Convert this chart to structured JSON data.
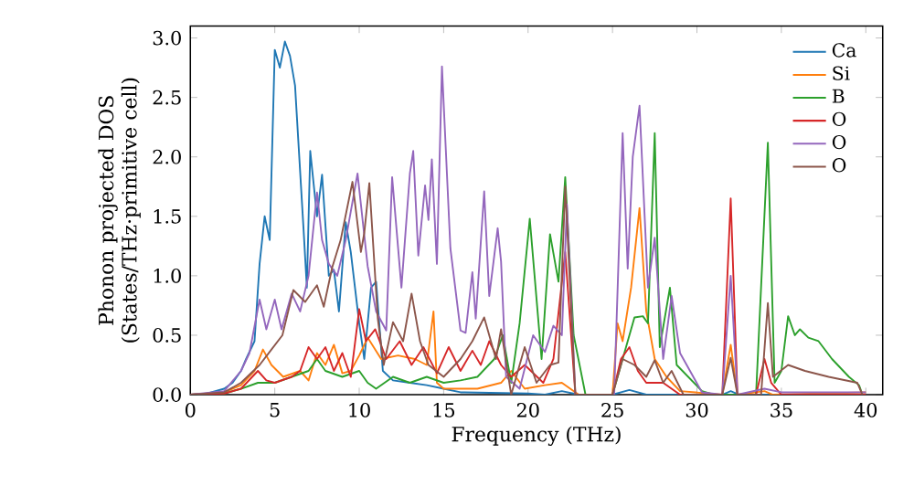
{
  "chart_data": {
    "type": "line",
    "xlabel": "Frequency (THz)",
    "ylabel": "Phonon projected DOS (States/THz·primitive cell)",
    "xlim": [
      0,
      41
    ],
    "ylim": [
      0,
      3.1
    ],
    "xticks": [
      0,
      5,
      10,
      15,
      20,
      25,
      30,
      35,
      40
    ],
    "yticks": [
      {
        "value": 0,
        "label": "0.0"
      },
      {
        "value": 0.5,
        "label": "0.5"
      },
      {
        "value": 1,
        "label": "1.0"
      },
      {
        "value": 1.5,
        "label": "1.5"
      },
      {
        "value": 2,
        "label": "2.0"
      },
      {
        "value": 2.5,
        "label": "2.5"
      },
      {
        "value": 3,
        "label": "3.0"
      }
    ],
    "legend": "top right",
    "line_style": "solid",
    "grid": false,
    "series": [
      {
        "name": "Ca",
        "color": "#1f77b4",
        "x": [
          0,
          1,
          2,
          2.5,
          3,
          3.3,
          3.8,
          4.1,
          4.4,
          4.7,
          5.0,
          5.3,
          5.6,
          5.9,
          6.2,
          6.7,
          6.9,
          7.1,
          7.5,
          7.8,
          8.2,
          8.5,
          8.8,
          9.2,
          9.5,
          10.0,
          10.3,
          10.7,
          11,
          11.4,
          12,
          13,
          14,
          15,
          16,
          20,
          21,
          22,
          23,
          25,
          26,
          27,
          31.5,
          32,
          32.5,
          40
        ],
        "values": [
          0,
          0.01,
          0.05,
          0.1,
          0.2,
          0.3,
          0.45,
          1.1,
          1.5,
          1.3,
          2.9,
          2.75,
          2.97,
          2.85,
          2.6,
          1.4,
          0.9,
          2.05,
          1.5,
          1.85,
          1.0,
          1.05,
          0.7,
          1.45,
          1.2,
          0.6,
          0.3,
          0.9,
          0.95,
          0.2,
          0.12,
          0.1,
          0.08,
          0.05,
          0.02,
          0.01,
          0,
          0.03,
          0,
          0,
          0.04,
          0,
          0,
          0.03,
          0,
          0
        ]
      },
      {
        "name": "Si",
        "color": "#ff7f0e",
        "x": [
          0,
          2,
          3,
          3.8,
          4.3,
          4.8,
          5.5,
          6.5,
          7,
          7.5,
          8,
          8.5,
          9,
          9.5,
          10,
          10.5,
          11.3,
          12.3,
          13.3,
          14,
          14.4,
          14.6,
          15,
          17,
          18.4,
          19,
          19.8,
          21,
          22,
          23,
          25,
          25.3,
          25.6,
          26.1,
          26.6,
          27,
          27.5,
          28.2,
          29,
          31.5,
          32,
          32.4,
          34,
          34.5,
          40
        ],
        "values": [
          0,
          0.02,
          0.08,
          0.2,
          0.38,
          0.25,
          0.15,
          0.2,
          0.12,
          0.35,
          0.25,
          0.42,
          0.18,
          0.2,
          0.33,
          0.48,
          0.3,
          0.33,
          0.3,
          0.25,
          0.7,
          0.1,
          0.05,
          0.05,
          0.1,
          0.2,
          0.05,
          0.08,
          0.1,
          0,
          0,
          0.6,
          0.45,
          0.9,
          1.57,
          0.7,
          0.3,
          0.15,
          0.03,
          0,
          0.42,
          0,
          0.03,
          0,
          0.02
        ]
      },
      {
        "name": "B",
        "color": "#2ca02c",
        "x": [
          0,
          2,
          3,
          4,
          5,
          6,
          7,
          7.5,
          8,
          9,
          10,
          10.5,
          11,
          12,
          13,
          14,
          15,
          16,
          17,
          18,
          18.5,
          19,
          19.5,
          20.1,
          20.8,
          21.3,
          21.8,
          22.2,
          22.7,
          23.4,
          25,
          25.6,
          26.3,
          26.8,
          27.1,
          27.5,
          27.8,
          28.4,
          28.8,
          30.3,
          31,
          33.5,
          34.2,
          34.6,
          35,
          35.4,
          35.8,
          36.1,
          36.6,
          37.2,
          38,
          39,
          39.6,
          39.8
        ],
        "values": [
          0,
          0.01,
          0.05,
          0.1,
          0.1,
          0.15,
          0.2,
          0.3,
          0.2,
          0.15,
          0.2,
          0.1,
          0.05,
          0.15,
          0.1,
          0.15,
          0.1,
          0.12,
          0.15,
          0.3,
          0.5,
          0.1,
          0.6,
          1.48,
          0.3,
          1.35,
          0.95,
          1.83,
          0.5,
          0,
          0,
          0.3,
          0.65,
          0.66,
          0.6,
          2.2,
          0.4,
          0.9,
          0.25,
          0.03,
          0,
          0,
          2.12,
          0.1,
          0.2,
          0.66,
          0.5,
          0.55,
          0.48,
          0.45,
          0.3,
          0.15,
          0.08,
          0
        ]
      },
      {
        "name": "O",
        "color": "#d62728",
        "x": [
          0,
          2,
          3,
          4,
          4.5,
          5,
          6,
          6.5,
          7,
          7.5,
          8,
          8.5,
          9,
          9.5,
          10,
          10.4,
          10.95,
          11.6,
          12.4,
          13.1,
          13.8,
          14.6,
          15.3,
          16,
          16.7,
          17.2,
          17.7,
          18.4,
          19,
          19.8,
          20.9,
          21.5,
          22.2,
          22.8,
          25,
          25.5,
          26,
          26.5,
          27,
          28,
          29,
          31.5,
          32,
          32.4,
          33.5,
          34,
          34.4,
          35,
          40
        ],
        "values": [
          0,
          0.01,
          0.05,
          0.2,
          0.12,
          0.1,
          0.15,
          0.2,
          0.4,
          0.3,
          0.4,
          0.2,
          0.35,
          0.15,
          0.72,
          0.45,
          0.55,
          0.3,
          0.45,
          0.25,
          0.4,
          0.18,
          0.4,
          0.2,
          0.37,
          0.25,
          0.45,
          0.25,
          0.15,
          0.25,
          0.1,
          0.3,
          1.2,
          0,
          0,
          0.3,
          0.4,
          0.2,
          0.1,
          0.1,
          0,
          0,
          1.65,
          0,
          0,
          0.3,
          0.1,
          0,
          0
        ]
      },
      {
        "name": "O",
        "color": "#9467bd",
        "x": [
          0,
          2,
          3,
          3.5,
          4.1,
          4.5,
          5,
          5.4,
          6,
          6.5,
          7,
          7.5,
          7.8,
          8.2,
          8.7,
          9.2,
          9.9,
          10.5,
          11,
          11.6,
          11.95,
          12.5,
          13.0,
          13.2,
          13.5,
          13.9,
          14.1,
          14.3,
          14.6,
          14.9,
          15.4,
          16.0,
          16.3,
          16.7,
          16.9,
          17.4,
          17.7,
          18.2,
          18.4,
          18.7,
          19.5,
          20.3,
          21,
          21.5,
          22,
          22.3,
          22.8,
          25.1,
          25.6,
          25.9,
          26.2,
          26.6,
          27.1,
          27.5,
          28.0,
          28.5,
          29.0,
          30.3,
          31.5,
          32,
          32.4,
          34,
          35,
          40
        ],
        "values": [
          0,
          0.03,
          0.2,
          0.35,
          0.8,
          0.55,
          0.8,
          0.55,
          0.85,
          0.7,
          1.0,
          1.7,
          1.3,
          1.1,
          1.0,
          1.3,
          1.86,
          1.08,
          0.7,
          0.54,
          1.83,
          0.9,
          1.86,
          2.05,
          1.17,
          1.76,
          1.47,
          1.98,
          1.1,
          2.76,
          1.23,
          0.54,
          0.52,
          1.03,
          0.64,
          1.71,
          0.83,
          1.4,
          1.12,
          0.15,
          0.05,
          0.5,
          0.36,
          0.58,
          0.5,
          1.6,
          0,
          0,
          2.2,
          1.06,
          2.0,
          2.43,
          0.9,
          1.32,
          0.3,
          0.83,
          0.35,
          0.02,
          0,
          1.0,
          0,
          0.05,
          0.02,
          0.02
        ]
      },
      {
        "name": "O",
        "color": "#8c564b",
        "x": [
          0,
          2,
          3,
          4.1,
          4.75,
          5.45,
          6.1,
          6.8,
          7.5,
          7.9,
          8.4,
          8.9,
          9.6,
          10.1,
          10.3,
          10.6,
          11.1,
          11.45,
          12.0,
          12.6,
          13.1,
          13.6,
          14.1,
          15,
          16,
          16.7,
          17.4,
          18.1,
          18.4,
          19,
          19.8,
          20.5,
          21.3,
          21.8,
          22.2,
          22.8,
          25,
          25.6,
          26.3,
          27,
          27.5,
          28,
          28.5,
          29.2,
          31.5,
          32,
          32.4,
          33.8,
          34.2,
          34.5,
          35.4,
          36.4,
          37.8,
          39.5,
          39.8
        ],
        "values": [
          0,
          0.02,
          0.1,
          0.25,
          0.37,
          0.5,
          0.88,
          0.78,
          0.92,
          0.74,
          1.07,
          1.3,
          1.79,
          1.2,
          1.36,
          1.78,
          0.64,
          0.25,
          0.61,
          0.45,
          0.85,
          0.45,
          0.25,
          0.15,
          0.3,
          0.45,
          0.65,
          0.3,
          0.55,
          0,
          0.4,
          0.1,
          0.25,
          0.27,
          1.75,
          0,
          0,
          0.3,
          0.25,
          0.15,
          0.29,
          0.1,
          0.2,
          0,
          0,
          0.31,
          0,
          0,
          0.77,
          0.15,
          0.25,
          0.2,
          0.15,
          0.1,
          0
        ]
      }
    ]
  }
}
